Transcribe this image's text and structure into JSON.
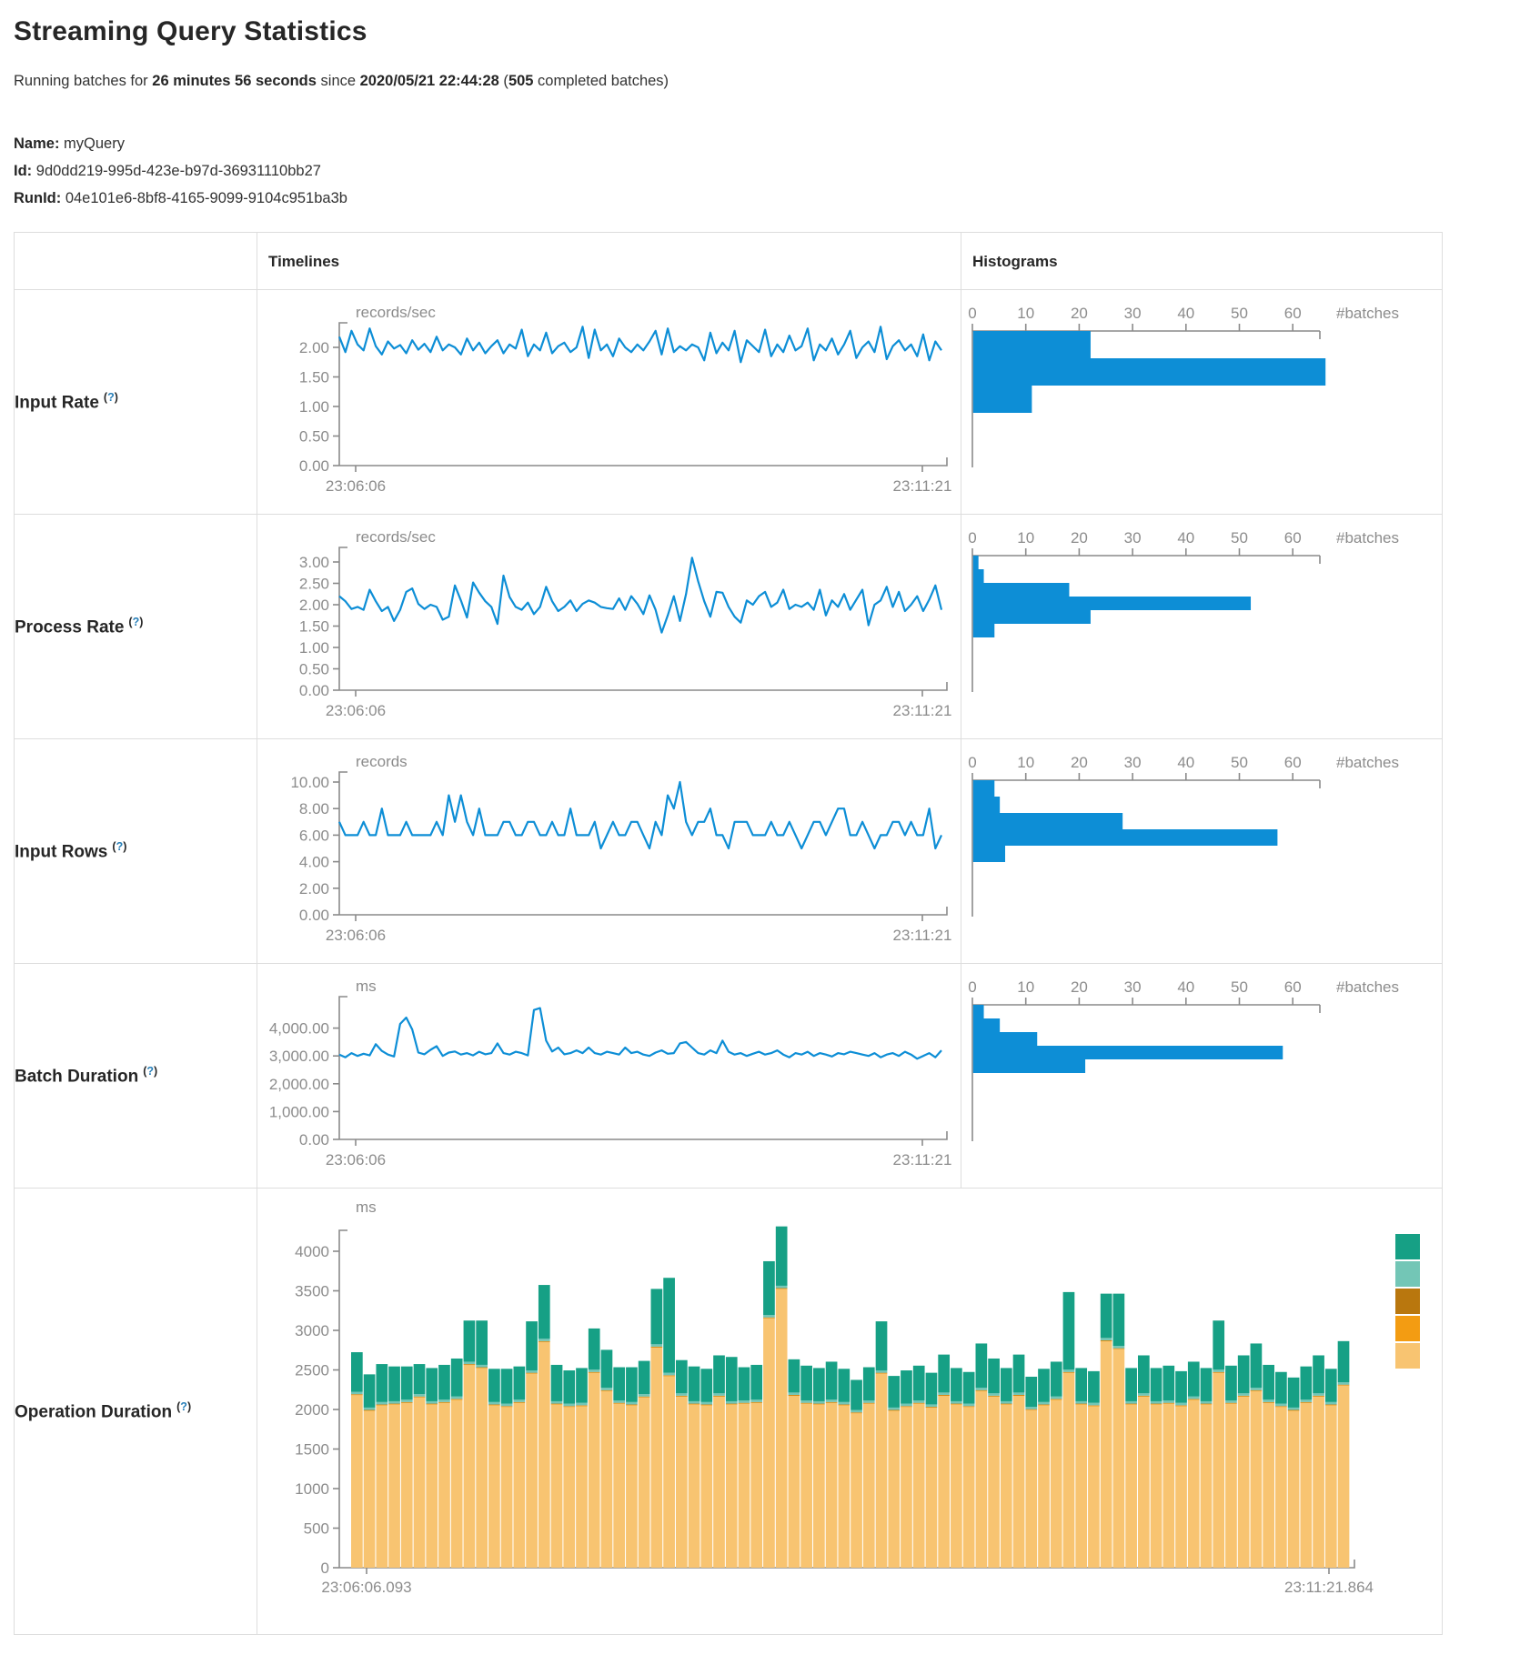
{
  "page": {
    "title": "Streaming Query Statistics",
    "subtitle": {
      "running_prefix": "Running batches for ",
      "duration": "26 minutes 56 seconds",
      "since": " since ",
      "start_time": "2020/05/21 22:44:28",
      "paren_open": " (",
      "completed_count": "505",
      "paren_close": " completed batches)"
    },
    "meta": {
      "name_label": "Name:",
      "name_value": "myQuery",
      "id_label": "Id:",
      "id_value": "9d0dd219-995d-423e-b97d-36931110bb27",
      "runid_label": "RunId:",
      "runid_value": "04e101e6-8bf8-4165-9099-9104c951ba3b"
    }
  },
  "table": {
    "timelines_header": "Timelines",
    "histograms_header": "Histograms"
  },
  "help": {
    "open": "(",
    "q": "?",
    "close": ")"
  },
  "rows": [
    {
      "label": "Input Rate"
    },
    {
      "label": "Process Rate"
    },
    {
      "label": "Input Rows"
    },
    {
      "label": "Batch Duration"
    },
    {
      "label": "Operation Duration"
    }
  ],
  "colors": {
    "line_blue": "#0d8ed6",
    "axis_gray": "#8a8a8a",
    "tick_text_gray": "#8c8c8c",
    "legend": [
      "#16A085",
      "#73C6B6",
      "#B9770E",
      "#F39C12",
      "#F8C471"
    ]
  },
  "chart_data": [
    {
      "metric": "Input Rate",
      "type": "line",
      "unit": "records/sec",
      "x_start": "23:06:06",
      "x_end": "23:11:21",
      "ylim": [
        0,
        2.42
      ],
      "yticks": [
        0,
        0.5,
        1,
        1.5,
        2
      ],
      "ytick_labels": [
        "0.00",
        "0.50",
        "1.00",
        "1.50",
        "2.00"
      ],
      "values": [
        2.18,
        1.92,
        2.28,
        2.05,
        1.95,
        2.32,
        2.02,
        1.88,
        2.1,
        1.98,
        2.04,
        1.9,
        2.12,
        1.96,
        2.06,
        1.92,
        2.18,
        1.95,
        2.05,
        2.0,
        1.88,
        2.15,
        1.95,
        2.08,
        1.9,
        2.02,
        2.12,
        1.9,
        2.05,
        1.98,
        2.3,
        1.85,
        2.05,
        1.95,
        2.25,
        1.9,
        2.02,
        2.08,
        1.92,
        2.0,
        2.35,
        1.82,
        2.3,
        1.95,
        2.05,
        1.85,
        2.15,
        2.0,
        1.92,
        2.05,
        1.95,
        2.1,
        2.28,
        1.88,
        2.32,
        1.92,
        2.02,
        1.95,
        2.05,
        2.0,
        1.78,
        2.25,
        1.9,
        2.08,
        1.95,
        2.28,
        1.75,
        2.12,
        2.02,
        1.92,
        2.3,
        1.85,
        2.05,
        1.92,
        2.2,
        1.95,
        2.02,
        2.32,
        1.78,
        2.05,
        1.95,
        2.15,
        1.88,
        2.05,
        2.28,
        1.82,
        2.0,
        2.1,
        1.92,
        2.35,
        1.8,
        2.02,
        2.12,
        1.95,
        2.05,
        1.85,
        2.22,
        1.78,
        2.1,
        1.95
      ],
      "histogram": {
        "type": "bar",
        "xlabel": "#batches",
        "xticks": [
          0,
          10,
          20,
          30,
          40,
          50,
          60
        ],
        "bins": [
          22,
          66,
          11
        ]
      }
    },
    {
      "metric": "Process Rate",
      "type": "line",
      "unit": "records/sec",
      "x_start": "23:06:06",
      "x_end": "23:11:21",
      "ylim": [
        0,
        3.3
      ],
      "yticks": [
        0,
        0.5,
        1,
        1.5,
        2,
        2.5,
        3
      ],
      "ytick_labels": [
        "0.00",
        "0.50",
        "1.00",
        "1.50",
        "2.00",
        "2.50",
        "3.00"
      ],
      "values": [
        2.2,
        2.08,
        1.9,
        1.95,
        1.88,
        2.35,
        2.08,
        1.85,
        1.95,
        1.62,
        1.88,
        2.3,
        2.38,
        2.02,
        1.9,
        2.0,
        1.95,
        1.65,
        1.72,
        2.45,
        2.1,
        1.7,
        2.52,
        2.28,
        2.08,
        1.95,
        1.55,
        2.68,
        2.18,
        1.95,
        1.88,
        2.05,
        1.78,
        1.95,
        2.42,
        2.08,
        1.85,
        1.95,
        2.1,
        1.85,
        2.02,
        2.1,
        2.05,
        1.95,
        1.92,
        1.9,
        2.15,
        1.88,
        2.2,
        2.02,
        1.78,
        2.22,
        1.88,
        1.35,
        1.75,
        2.2,
        1.62,
        2.25,
        3.1,
        2.55,
        2.08,
        1.72,
        2.3,
        2.28,
        1.95,
        1.72,
        1.58,
        2.1,
        2.0,
        2.2,
        2.3,
        1.95,
        2.05,
        2.35,
        1.9,
        2.0,
        1.95,
        2.05,
        1.88,
        2.35,
        1.75,
        2.1,
        1.95,
        2.25,
        1.88,
        2.12,
        2.35,
        1.52,
        2.0,
        2.1,
        2.42,
        1.95,
        2.3,
        1.85,
        2.0,
        2.2,
        1.85,
        2.12,
        2.45,
        1.88
      ],
      "histogram": {
        "type": "bar",
        "xlabel": "#batches",
        "xticks": [
          0,
          10,
          20,
          30,
          40,
          50,
          60
        ],
        "bins": [
          1,
          2,
          18,
          52,
          22,
          4
        ]
      }
    },
    {
      "metric": "Input Rows",
      "type": "line",
      "unit": "records",
      "x_start": "23:06:06",
      "x_end": "23:11:21",
      "ylim": [
        0,
        10.6
      ],
      "yticks": [
        0,
        2,
        4,
        6,
        8,
        10
      ],
      "ytick_labels": [
        "0.00",
        "2.00",
        "4.00",
        "6.00",
        "8.00",
        "10.00"
      ],
      "values": [
        7,
        6,
        6,
        6,
        7,
        6,
        6,
        8,
        6,
        6,
        6,
        7,
        6,
        6,
        6,
        6,
        7,
        6,
        9,
        7,
        9,
        7,
        6,
        8,
        6,
        6,
        6,
        7,
        7,
        6,
        6,
        7,
        7,
        6,
        6,
        7,
        6,
        6,
        8,
        6,
        6,
        6,
        7,
        5,
        6,
        7,
        6,
        6,
        7,
        7,
        6,
        5,
        7,
        6,
        9,
        8,
        10,
        7,
        6,
        7,
        7,
        8,
        6,
        6,
        5,
        7,
        7,
        7,
        6,
        6,
        6,
        7,
        6,
        6,
        7,
        6,
        5,
        6,
        7,
        7,
        6,
        7,
        8,
        8,
        6,
        6,
        7,
        6,
        5,
        6,
        6,
        7,
        7,
        6,
        7,
        6,
        6,
        8,
        5,
        6
      ],
      "histogram": {
        "type": "bar",
        "xlabel": "#batches",
        "xticks": [
          0,
          10,
          20,
          30,
          40,
          50,
          60
        ],
        "bins": [
          4,
          5,
          28,
          57,
          6
        ]
      }
    },
    {
      "metric": "Batch Duration",
      "type": "line",
      "unit": "ms",
      "x_start": "23:06:06",
      "x_end": "23:11:21",
      "ylim": [
        0,
        4900
      ],
      "yticks": [
        0,
        1000,
        2000,
        3000,
        4000
      ],
      "ytick_labels": [
        "0.00",
        "1,000.00",
        "2,000.00",
        "3,000.00",
        "4,000.00"
      ],
      "values": [
        3050,
        2950,
        3100,
        3000,
        3080,
        3020,
        3420,
        3180,
        3050,
        2980,
        4150,
        4380,
        3950,
        3120,
        3060,
        3220,
        3350,
        3000,
        3120,
        3160,
        3050,
        3100,
        3020,
        3150,
        3060,
        3100,
        3450,
        3100,
        3050,
        3150,
        3100,
        3020,
        4650,
        4720,
        3550,
        3160,
        3300,
        3060,
        3100,
        3200,
        3100,
        3300,
        3100,
        3050,
        3150,
        3100,
        3050,
        3300,
        3100,
        3150,
        3050,
        3000,
        3120,
        3200,
        3080,
        3100,
        3450,
        3500,
        3300,
        3100,
        3050,
        3200,
        3100,
        3550,
        3150,
        3050,
        3100,
        3000,
        3080,
        3150,
        3050,
        3100,
        3200,
        3050,
        2950,
        3100,
        3050,
        3150,
        3000,
        3100,
        3050,
        2980,
        3100,
        3060,
        3150,
        3100,
        3050,
        3000,
        3100,
        2950,
        3050,
        3100,
        3000,
        3150,
        3050,
        2900,
        3000,
        3100,
        2950,
        3200
      ],
      "histogram": {
        "type": "bar",
        "xlabel": "#batches",
        "xticks": [
          0,
          10,
          20,
          30,
          40,
          50,
          60
        ],
        "bins": [
          2,
          5,
          12,
          58,
          21
        ]
      }
    },
    {
      "metric": "Operation Duration",
      "type": "stacked-bar",
      "unit": "ms",
      "x_start": "23:06:06.093",
      "x_end": "23:11:21.864",
      "ylim": [
        0,
        4400
      ],
      "yticks": [
        0,
        500,
        1000,
        1500,
        2000,
        2500,
        3000,
        3500,
        4000
      ],
      "ytick_labels": [
        "0",
        "500",
        "1000",
        "1500",
        "2000",
        "2500",
        "3000",
        "3500",
        "4000"
      ],
      "legend_colors": [
        "#16A085",
        "#73C6B6",
        "#B9770E",
        "#F39C12",
        "#F8C471"
      ],
      "series": [
        {
          "name": "tan-base",
          "color": "#F8C471",
          "values": [
            2180,
            1980,
            2050,
            2060,
            2080,
            2150,
            2060,
            2080,
            2120,
            2560,
            2520,
            2050,
            2030,
            2080,
            2450,
            2850,
            2060,
            2030,
            2040,
            2460,
            2230,
            2070,
            2050,
            2150,
            2780,
            2420,
            2160,
            2060,
            2050,
            2160,
            2060,
            2070,
            2080,
            3150,
            3520,
            2170,
            2070,
            2060,
            2080,
            2050,
            1950,
            2070,
            2450,
            1980,
            2030,
            2070,
            2020,
            2170,
            2060,
            2030,
            2230,
            2160,
            2060,
            2170,
            1990,
            2050,
            2120,
            2460,
            2060,
            2040,
            2860,
            2760,
            2060,
            2160,
            2060,
            2070,
            2040,
            2120,
            2060,
            2460,
            2070,
            2160,
            2230,
            2080,
            2030,
            1980,
            2080,
            2160,
            2050,
            2300
          ]
        },
        {
          "name": "orange-sliver",
          "color": "#F39C12",
          "constant": 8
        },
        {
          "name": "dark-orange-sliver",
          "color": "#B9770E",
          "constant": 6
        },
        {
          "name": "light-teal-sliver",
          "color": "#73C6B6",
          "constant": 30
        },
        {
          "name": "teal-top",
          "color": "#16A085",
          "values": [
            500,
            420,
            480,
            440,
            420,
            380,
            420,
            440,
            480,
            520,
            560,
            420,
            440,
            420,
            620,
            680,
            460,
            420,
            440,
            520,
            480,
            420,
            440,
            420,
            700,
            1200,
            420,
            440,
            420,
            480,
            560,
            420,
            440,
            680,
            750,
            420,
            440,
            420,
            480,
            420,
            380,
            420,
            620,
            400,
            420,
            440,
            400,
            480,
            420,
            400,
            560,
            440,
            420,
            480,
            380,
            420,
            440,
            980,
            420,
            400,
            560,
            660,
            420,
            480,
            420,
            440,
            400,
            440,
            420,
            620,
            440,
            480,
            560,
            440,
            400,
            380,
            420,
            480,
            420,
            520
          ]
        }
      ]
    }
  ]
}
